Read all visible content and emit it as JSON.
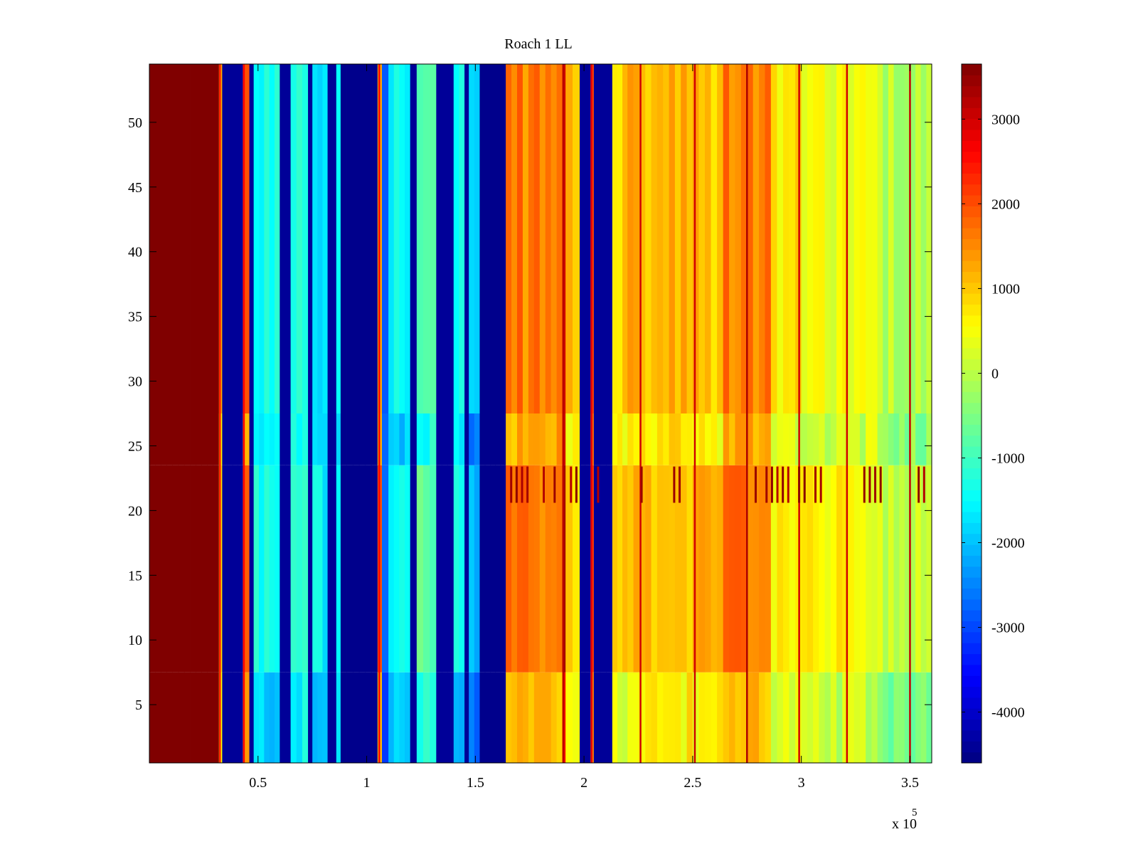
{
  "chart_data": {
    "type": "heatmap",
    "title": "Roach 1 LL",
    "xlabel": "",
    "ylabel": "",
    "x_exponent_label": "x 10",
    "x_exponent_power": "5",
    "xlim": [
      0,
      360000
    ],
    "ylim": [
      0.5,
      54.5
    ],
    "colormap": "jet",
    "clim": [
      -4600,
      3650
    ],
    "x_ticks": [
      50000,
      100000,
      150000,
      200000,
      250000,
      300000,
      350000
    ],
    "x_tick_labels": [
      "0.5",
      "1",
      "1.5",
      "2",
      "2.5",
      "3",
      "3.5"
    ],
    "y_ticks": [
      5,
      10,
      15,
      20,
      25,
      30,
      35,
      40,
      45,
      50
    ],
    "y_tick_labels": [
      "5",
      "10",
      "15",
      "20",
      "25",
      "30",
      "35",
      "40",
      "45",
      "50"
    ],
    "colorbar_ticks": [
      3000,
      2000,
      1000,
      0,
      -1000,
      -2000,
      -3000,
      -4000
    ],
    "colorbar_tick_labels": [
      "3000",
      "2000",
      "1000",
      "0",
      "-1000",
      "-2000",
      "-3000",
      "-4000"
    ],
    "rows": 54,
    "row_band_splits": [
      7,
      23,
      27
    ],
    "x_segments": [
      {
        "x0": 0,
        "x1": 32000,
        "v": 3650
      },
      {
        "x0": 32000,
        "x1": 33500,
        "v": 800
      },
      {
        "x0": 33500,
        "x1": 43000,
        "v": -4400
      },
      {
        "x0": 43000,
        "x1": 46000,
        "v": 1600
      },
      {
        "x0": 46000,
        "x1": 48000,
        "v": -4400
      },
      {
        "x0": 48000,
        "x1": 60000,
        "v": -1500
      },
      {
        "x0": 60000,
        "x1": 65000,
        "v": -4400
      },
      {
        "x0": 65000,
        "x1": 73000,
        "v": -1200
      },
      {
        "x0": 73000,
        "x1": 75000,
        "v": -4400
      },
      {
        "x0": 75000,
        "x1": 82000,
        "v": -1700
      },
      {
        "x0": 82000,
        "x1": 86000,
        "v": -4400
      },
      {
        "x0": 86000,
        "x1": 88000,
        "v": -1500
      },
      {
        "x0": 88000,
        "x1": 105000,
        "v": -4500
      },
      {
        "x0": 105000,
        "x1": 107000,
        "v": 1500
      },
      {
        "x0": 107000,
        "x1": 110000,
        "v": -2600
      },
      {
        "x0": 110000,
        "x1": 120000,
        "v": -1600
      },
      {
        "x0": 120000,
        "x1": 123000,
        "v": -4400
      },
      {
        "x0": 123000,
        "x1": 132000,
        "v": -1000
      },
      {
        "x0": 132000,
        "x1": 140000,
        "v": -4400
      },
      {
        "x0": 140000,
        "x1": 145000,
        "v": -1600
      },
      {
        "x0": 145000,
        "x1": 147000,
        "v": -4400
      },
      {
        "x0": 147000,
        "x1": 152000,
        "v": -2200
      },
      {
        "x0": 152000,
        "x1": 164000,
        "v": -4500
      },
      {
        "x0": 164000,
        "x1": 190000,
        "v": 1500
      },
      {
        "x0": 190000,
        "x1": 191500,
        "v": 3000
      },
      {
        "x0": 191500,
        "x1": 198000,
        "v": 900
      },
      {
        "x0": 198000,
        "x1": 203000,
        "v": -4400
      },
      {
        "x0": 203000,
        "x1": 204500,
        "v": 2200
      },
      {
        "x0": 204500,
        "x1": 213000,
        "v": -4400
      },
      {
        "x0": 213000,
        "x1": 220000,
        "v": 700
      },
      {
        "x0": 220000,
        "x1": 250000,
        "v": 1000
      },
      {
        "x0": 250000,
        "x1": 264000,
        "v": 900
      },
      {
        "x0": 264000,
        "x1": 286000,
        "v": 1500
      },
      {
        "x0": 286000,
        "x1": 300000,
        "v": 600
      },
      {
        "x0": 300000,
        "x1": 335000,
        "v": 400
      },
      {
        "x0": 335000,
        "x1": 360000,
        "v": -100
      }
    ],
    "stripe_lines": [
      {
        "x": 32500,
        "v": 2400
      },
      {
        "x": 43500,
        "v": 2600
      },
      {
        "x": 105800,
        "v": 2600
      },
      {
        "x": 190500,
        "v": 3200
      },
      {
        "x": 203500,
        "v": 2800
      },
      {
        "x": 226000,
        "v": 3000
      },
      {
        "x": 251000,
        "v": 3000
      },
      {
        "x": 275000,
        "v": 3300
      },
      {
        "x": 299000,
        "v": 3000
      },
      {
        "x": 321000,
        "v": 3000
      },
      {
        "x": 350000,
        "v": 3100
      }
    ]
  }
}
